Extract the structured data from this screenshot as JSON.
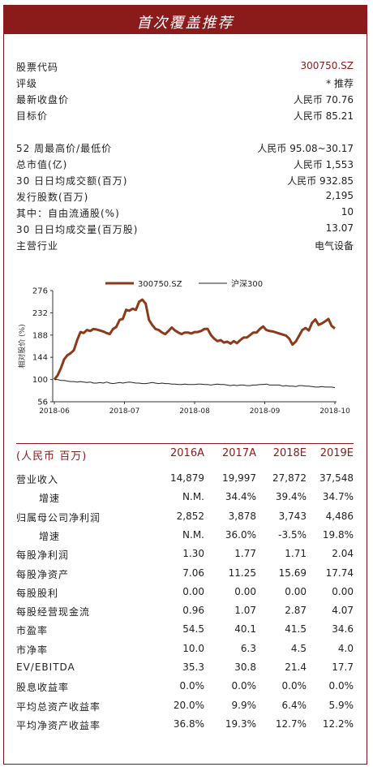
{
  "header": {
    "title": "首次覆盖推荐"
  },
  "info": [
    {
      "label": "股票代码",
      "value": "300750.SZ",
      "red": true
    },
    {
      "label": "评级",
      "value": "* 推荐"
    },
    {
      "label": "最新收盘价",
      "value": "人民币 70.76"
    },
    {
      "label": "目标价",
      "value": "人民币 85.21"
    },
    {
      "label": "52 周最高价/最低价",
      "value": "人民币 95.08~30.17"
    },
    {
      "label": "总市值(亿)",
      "value": "人民币 1,553"
    },
    {
      "label": "30 日日均成交额(百万)",
      "value": "人民币 932.85"
    },
    {
      "label": "发行股数(百万)",
      "value": "2,195"
    },
    {
      "label": "其中：自由流通股(%)",
      "value": "10"
    },
    {
      "label": "30 日日均成交量(百万股)",
      "value": "13.07"
    },
    {
      "label": "主营行业",
      "value": "电气设备"
    }
  ],
  "chart_data": {
    "type": "line",
    "ylabel": "相对股价 (%)",
    "ylim": [
      56,
      276
    ],
    "yticks": [
      56,
      100,
      144,
      188,
      232,
      276
    ],
    "x_ticks": [
      "2018-06",
      "2018-07",
      "2018-08",
      "2018-09",
      "2018-10"
    ],
    "legend_position": "top",
    "series": [
      {
        "name": "300750.SZ",
        "color": "#8b3a1a",
        "values": [
          100,
          108,
          122,
          140,
          148,
          152,
          158,
          178,
          194,
          192,
          198,
          196,
          200,
          199,
          197,
          195,
          192,
          190,
          200,
          204,
          218,
          220,
          238,
          236,
          240,
          238,
          254,
          258,
          250,
          218,
          208,
          200,
          198,
          193,
          190,
          196,
          203,
          197,
          193,
          190,
          193,
          193,
          191,
          194,
          194,
          196,
          200,
          200,
          188,
          181,
          176,
          178,
          173,
          175,
          171,
          176,
          172,
          178,
          183,
          183,
          188,
          193,
          193,
          200,
          205,
          198,
          196,
          195,
          193,
          191,
          189,
          187,
          181,
          169,
          175,
          186,
          198,
          202,
          197,
          212,
          219,
          208,
          211,
          215,
          220,
          206,
          201
        ]
      },
      {
        "name": "沪深300",
        "color": "#222222",
        "values": [
          100,
          100,
          98,
          98,
          97,
          96,
          96,
          95,
          96,
          95,
          94,
          95,
          93,
          93,
          94,
          93,
          95,
          93,
          92,
          93,
          94,
          93,
          94,
          95,
          94,
          93,
          93,
          92,
          92,
          93,
          94,
          93,
          92,
          93,
          92,
          92,
          91,
          91,
          90,
          90,
          91,
          90,
          90,
          90,
          91,
          91,
          90,
          90,
          89,
          90,
          91,
          90,
          90,
          89,
          88,
          89,
          88,
          89,
          89,
          88,
          88,
          89,
          89,
          90,
          90,
          91,
          89,
          89,
          89,
          89,
          87,
          88,
          87,
          87,
          86,
          88,
          88,
          87,
          87,
          86,
          85,
          85,
          86,
          85,
          85,
          85,
          84
        ]
      }
    ]
  },
  "financials": {
    "header": {
      "label": "(人民币 百万)",
      "cols": [
        "2016A",
        "2017A",
        "2018E",
        "2019E"
      ]
    },
    "rows": [
      {
        "label": "营业收入",
        "values": [
          "14,879",
          "19,997",
          "27,872",
          "37,548"
        ]
      },
      {
        "label": "增速",
        "indent": true,
        "values": [
          "N.M.",
          "34.4%",
          "39.4%",
          "34.7%"
        ]
      },
      {
        "label": "归属母公司净利润",
        "values": [
          "2,852",
          "3,878",
          "3,743",
          "4,486"
        ]
      },
      {
        "label": "增速",
        "indent": true,
        "values": [
          "N.M.",
          "36.0%",
          "-3.5%",
          "19.8%"
        ]
      },
      {
        "label": "每股净利润",
        "values": [
          "1.30",
          "1.77",
          "1.71",
          "2.04"
        ]
      },
      {
        "label": "每股净资产",
        "values": [
          "7.06",
          "11.25",
          "15.69",
          "17.74"
        ]
      },
      {
        "label": "每股股利",
        "values": [
          "0.00",
          "0.00",
          "0.00",
          "0.00"
        ]
      },
      {
        "label": "每股经营现金流",
        "values": [
          "0.96",
          "1.07",
          "2.87",
          "4.07"
        ]
      },
      {
        "label": "市盈率",
        "values": [
          "54.5",
          "40.1",
          "41.5",
          "34.6"
        ]
      },
      {
        "label": "市净率",
        "values": [
          "10.0",
          "6.3",
          "4.5",
          "4.0"
        ]
      },
      {
        "label": "EV/EBITDA",
        "values": [
          "35.3",
          "30.8",
          "21.4",
          "17.7"
        ]
      },
      {
        "label": "股息收益率",
        "values": [
          "0.0%",
          "0.0%",
          "0.0%",
          "0.0%"
        ]
      },
      {
        "label": "平均总资产收益率",
        "values": [
          "20.0%",
          "9.9%",
          "6.4%",
          "5.9%"
        ]
      },
      {
        "label": "平均净资产收益率",
        "values": [
          "36.8%",
          "19.3%",
          "12.7%",
          "12.2%"
        ]
      }
    ]
  }
}
